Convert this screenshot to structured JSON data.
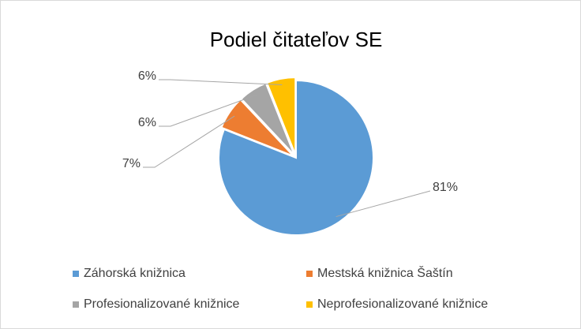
{
  "chart_data": {
    "type": "pie",
    "title": "Podiel čitateľov SE",
    "categories": [
      "Záhorská knižnica",
      "Mestská knižnica Šaštín",
      "Profesionalizované knižnice",
      "Neprofesionalizované knižnice"
    ],
    "values": [
      81,
      7,
      6,
      6
    ],
    "value_labels": [
      "81%",
      "7%",
      "6%",
      "6%"
    ],
    "colors": [
      "#5b9bd5",
      "#ed7d31",
      "#a5a5a5",
      "#ffc000"
    ],
    "legend": "bottom"
  }
}
